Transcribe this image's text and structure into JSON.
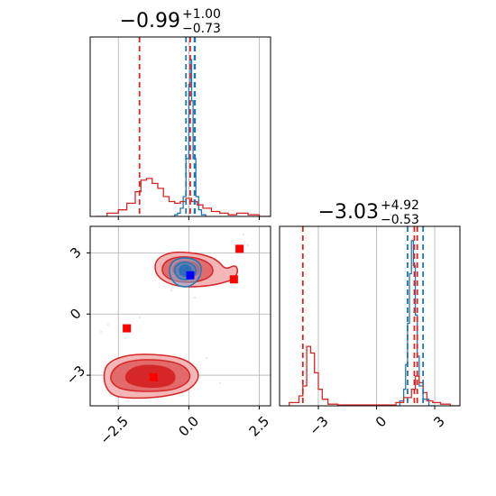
{
  "chart_data": [
    {
      "type": "histogram",
      "panel": "top-left",
      "title": {
        "base": "−0.99",
        "sup": "+1.00",
        "sub": "−0.73"
      },
      "xlim": [
        -3.5,
        2.9
      ],
      "grid": true,
      "series": [
        {
          "name": "",
          "color": "#1f77b4",
          "bins": [
            [
              -0.6,
              -0.5,
              0.0
            ],
            [
              -0.5,
              -0.4,
              0.01
            ],
            [
              -0.4,
              -0.3,
              0.02
            ],
            [
              -0.3,
              -0.2,
              0.05
            ],
            [
              -0.2,
              -0.1,
              0.12
            ],
            [
              -0.1,
              0.0,
              0.35
            ],
            [
              0.0,
              0.05,
              0.8
            ],
            [
              0.05,
              0.1,
              0.95
            ],
            [
              0.1,
              0.15,
              0.7
            ],
            [
              0.15,
              0.25,
              0.35
            ],
            [
              0.25,
              0.35,
              0.12
            ],
            [
              0.35,
              0.45,
              0.04
            ],
            [
              0.45,
              0.6,
              0.01
            ]
          ]
        },
        {
          "name": "",
          "color": "#d62728",
          "bins": [
            [
              -3.3,
              -2.9,
              0.0
            ],
            [
              -2.9,
              -2.5,
              0.02
            ],
            [
              -2.5,
              -2.2,
              0.04
            ],
            [
              -2.2,
              -1.9,
              0.08
            ],
            [
              -1.9,
              -1.7,
              0.15
            ],
            [
              -1.7,
              -1.5,
              0.22
            ],
            [
              -1.5,
              -1.3,
              0.23
            ],
            [
              -1.3,
              -1.1,
              0.2
            ],
            [
              -1.1,
              -0.9,
              0.17
            ],
            [
              -0.9,
              -0.7,
              0.12
            ],
            [
              -0.7,
              -0.5,
              0.09
            ],
            [
              -0.5,
              -0.3,
              0.08
            ],
            [
              -0.3,
              -0.1,
              0.09
            ],
            [
              -0.1,
              0.1,
              0.11
            ],
            [
              0.1,
              0.3,
              0.09
            ],
            [
              0.3,
              0.5,
              0.07
            ],
            [
              0.5,
              0.8,
              0.05
            ],
            [
              0.8,
              1.1,
              0.03
            ],
            [
              1.1,
              1.4,
              0.02
            ],
            [
              1.4,
              1.7,
              0.01
            ],
            [
              1.7,
              2.1,
              0.02
            ],
            [
              2.1,
              2.5,
              0.01
            ],
            [
              2.5,
              2.9,
              0.0
            ]
          ]
        }
      ],
      "vlines": [
        {
          "x": -1.75,
          "color": "#d62728"
        },
        {
          "x": -0.1,
          "color": "#1f77b4"
        },
        {
          "x": 0.2,
          "color": "#1f77b4"
        },
        {
          "x": 0.05,
          "color": "#d62728"
        },
        {
          "x": 0.22,
          "color": "#1f77b4"
        }
      ]
    },
    {
      "type": "contour",
      "panel": "bottom-left",
      "xlim": [
        -3.5,
        2.9
      ],
      "ylim": [
        -4.5,
        4.3
      ],
      "grid": true,
      "xticks": [
        "−2.5",
        "0.0",
        "2.5"
      ],
      "yticks": [
        "3",
        "0",
        "−3"
      ],
      "xtick_values": [
        -2.5,
        0.0,
        2.5
      ],
      "ytick_values": [
        3,
        0,
        -3
      ],
      "points": [
        {
          "x": 0.05,
          "y": 1.9,
          "color": "#0000ff",
          "marker": "square"
        },
        {
          "x": 1.8,
          "y": 3.2,
          "color": "#ff0000",
          "marker": "square"
        },
        {
          "x": 1.6,
          "y": 1.7,
          "color": "#ff0000",
          "marker": "square"
        },
        {
          "x": -2.2,
          "y": -0.7,
          "color": "#ff0000",
          "marker": "square"
        },
        {
          "x": -1.25,
          "y": -3.1,
          "color": "#ff0000",
          "marker": "square"
        }
      ]
    },
    {
      "type": "histogram",
      "panel": "bottom-right",
      "title": {
        "base": "−3.03",
        "sup": "+4.92",
        "sub": "−0.53"
      },
      "xlim": [
        -5.0,
        4.3
      ],
      "grid": true,
      "xticks": [
        "−3",
        "0",
        "3"
      ],
      "xtick_values": [
        -3,
        0,
        3
      ],
      "series": [
        {
          "name": "",
          "color": "#1f77b4",
          "bins": [
            [
              1.0,
              1.2,
              0.0
            ],
            [
              1.2,
              1.4,
              0.03
            ],
            [
              1.4,
              1.5,
              0.1
            ],
            [
              1.5,
              1.6,
              0.25
            ],
            [
              1.6,
              1.7,
              0.5
            ],
            [
              1.7,
              1.8,
              0.8
            ],
            [
              1.8,
              1.9,
              1.0
            ],
            [
              1.9,
              2.0,
              0.85
            ],
            [
              2.0,
              2.1,
              0.55
            ],
            [
              2.1,
              2.2,
              0.3
            ],
            [
              2.2,
              2.4,
              0.12
            ],
            [
              2.4,
              2.7,
              0.04
            ],
            [
              2.7,
              3.0,
              0.0
            ]
          ]
        },
        {
          "name": "",
          "color": "#d62728",
          "bins": [
            [
              -4.5,
              -4.0,
              0.02
            ],
            [
              -4.0,
              -3.8,
              0.06
            ],
            [
              -3.8,
              -3.6,
              0.12
            ],
            [
              -3.6,
              -3.4,
              0.36
            ],
            [
              -3.4,
              -3.2,
              0.32
            ],
            [
              -3.2,
              -3.0,
              0.2
            ],
            [
              -3.0,
              -2.8,
              0.1
            ],
            [
              -2.8,
              -2.5,
              0.04
            ],
            [
              -2.5,
              -2.0,
              0.01
            ],
            [
              -2.0,
              1.0,
              0.005
            ],
            [
              1.0,
              1.4,
              0.02
            ],
            [
              1.4,
              1.8,
              0.05
            ],
            [
              1.8,
              2.0,
              0.1
            ],
            [
              2.0,
              2.2,
              0.18
            ],
            [
              2.2,
              2.4,
              0.14
            ],
            [
              2.4,
              2.6,
              0.08
            ],
            [
              2.6,
              2.9,
              0.03
            ],
            [
              2.9,
              3.3,
              0.02
            ],
            [
              3.3,
              3.8,
              0.01
            ],
            [
              3.8,
              4.3,
              0.0
            ]
          ]
        }
      ],
      "vlines": [
        {
          "x": -3.8,
          "color": "#d62728"
        },
        {
          "x": 1.6,
          "color": "#1f77b4"
        },
        {
          "x": 1.95,
          "color": "#d62728"
        },
        {
          "x": 2.1,
          "color": "#d62728"
        },
        {
          "x": 2.4,
          "color": "#1f77b4"
        }
      ]
    }
  ]
}
